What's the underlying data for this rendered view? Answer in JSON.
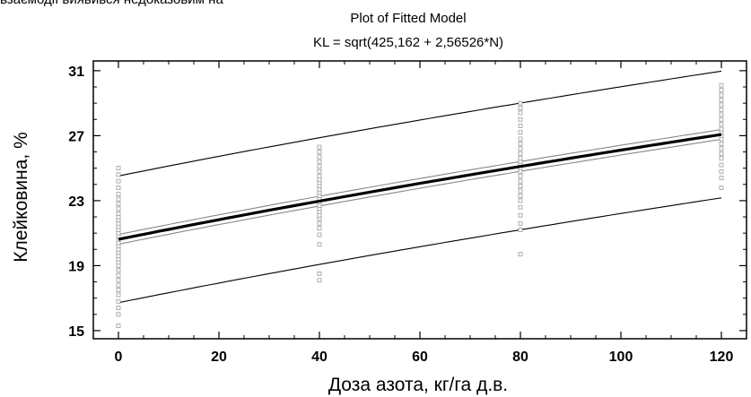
{
  "page": {
    "cropped_top_text": "взаємодії виявився недоказовим на"
  },
  "chart_data": {
    "type": "scatter",
    "title": "Plot of Fitted Model",
    "subtitle": "KL = sqrt(425,162 + 2,56526*N)",
    "xlabel": "Доза азота, кг/га д.в.",
    "ylabel": "Клейковина, %",
    "xlim": [
      -5,
      125
    ],
    "ylim": [
      14.5,
      31.6
    ],
    "x_ticks": [
      0,
      20,
      40,
      60,
      80,
      100,
      120
    ],
    "y_ticks": [
      15,
      19,
      23,
      27,
      31
    ],
    "grid": false,
    "model": {
      "intercept": 425.162,
      "slope": 2.56526
    },
    "confidence_band_halfwidth": 0.3,
    "prediction_band_halfwidth": 3.9,
    "series": [
      {
        "name": "",
        "x": 0,
        "values": [
          15.3,
          16.0,
          16.4,
          16.8,
          17.2,
          17.5,
          17.8,
          18.1,
          18.4,
          18.7,
          19.0,
          19.2,
          19.4,
          19.6,
          19.8,
          20.0,
          20.2,
          20.4,
          20.6,
          20.8,
          21.0,
          21.2,
          21.4,
          21.6,
          21.8,
          22.0,
          22.2,
          22.5,
          22.8,
          23.1,
          23.4,
          23.8,
          24.2,
          24.6,
          25.0
        ]
      },
      {
        "name": "",
        "x": 40,
        "values": [
          18.1,
          18.5,
          20.3,
          20.9,
          21.3,
          21.6,
          21.9,
          22.1,
          22.3,
          22.5,
          22.7,
          22.9,
          23.1,
          23.3,
          23.5,
          23.7,
          23.9,
          24.1,
          24.3,
          24.5,
          24.8,
          25.1,
          25.4,
          25.7,
          26.0,
          26.3
        ]
      },
      {
        "name": "",
        "x": 80,
        "values": [
          19.7,
          21.2,
          21.6,
          22.1,
          22.6,
          23.0,
          23.3,
          23.6,
          23.9,
          24.2,
          24.5,
          24.8,
          25.0,
          25.2,
          25.4,
          25.6,
          25.9,
          26.2,
          26.5,
          26.8,
          27.2,
          27.6,
          28.0,
          28.4,
          28.7,
          29.0
        ]
      },
      {
        "name": "",
        "x": 120,
        "values": [
          23.8,
          24.4,
          24.8,
          25.2,
          25.6,
          25.9,
          26.2,
          26.5,
          26.8,
          27.0,
          27.2,
          27.4,
          27.7,
          28.0,
          28.3,
          28.6,
          28.9,
          29.2,
          29.5,
          29.8,
          30.1
        ]
      }
    ]
  }
}
